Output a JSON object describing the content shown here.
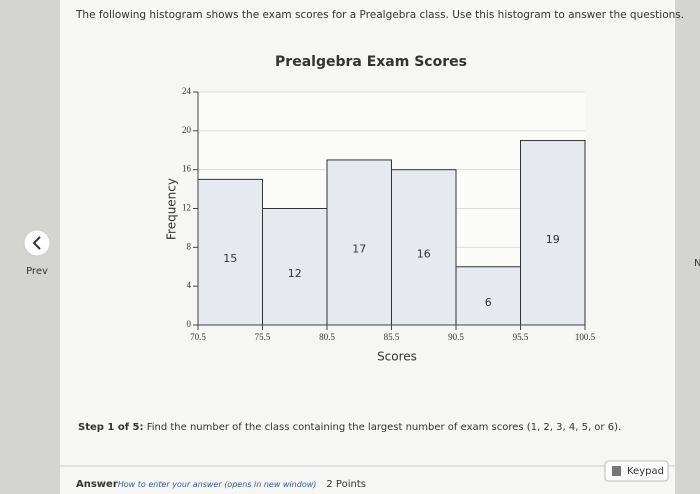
{
  "header": {
    "instruction": "The following histogram shows the exam scores for a Prealgebra class. Use this histogram to answer the questions."
  },
  "nav": {
    "prev": "Prev",
    "next": "N"
  },
  "chart_data": {
    "type": "histogram",
    "title": "Prealgebra Exam Scores",
    "x_label": "Scores",
    "y_label": "Frequency",
    "bins": [
      70.5,
      75.5,
      80.5,
      85.5,
      90.5,
      95.5,
      100.5
    ],
    "values": [
      15,
      12,
      17,
      16,
      6,
      19
    ],
    "color": "#e6e9ee",
    "xlim": [
      70.5,
      100.5
    ],
    "xticks": [
      70.5,
      75.5,
      80.5,
      85.5,
      90.5,
      95.5,
      100.5
    ],
    "ylim": [
      0,
      24
    ],
    "yticks": [
      0,
      4,
      8,
      12,
      16,
      20,
      24
    ],
    "grid": true
  },
  "step": {
    "label": "Step 1 of 5:",
    "text": "Find the number of the class containing the largest number of exam scores (1, 2, 3, 4, 5, or 6)."
  },
  "answer": {
    "label": "Answer",
    "link": "How to enter your answer (opens in new window)",
    "points": "2 Points",
    "keypad": "Keypad"
  }
}
